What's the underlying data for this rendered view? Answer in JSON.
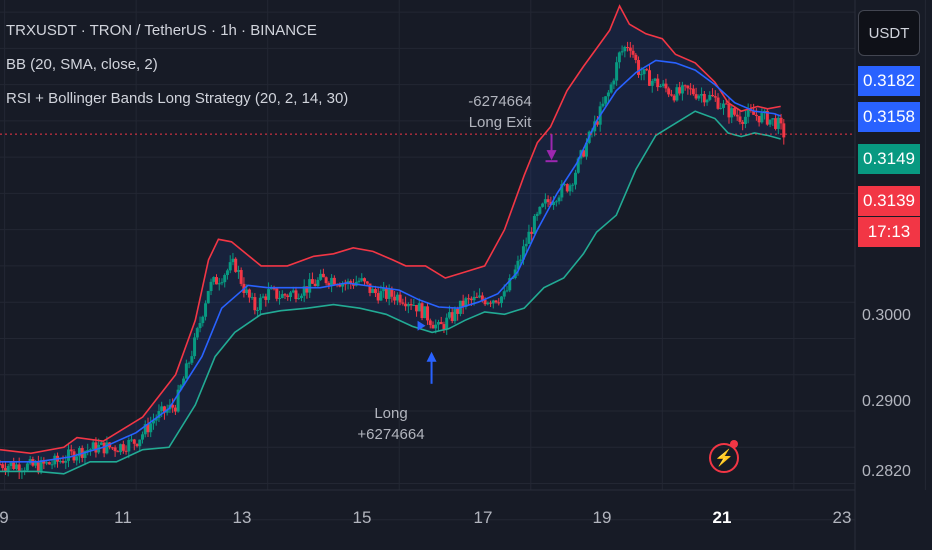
{
  "header": {
    "symbol_line": "TRXUSDT · TRON / TetherUS · 1h · BINANCE",
    "indicator_bb": "BB (20, SMA, close, 2)",
    "strategy": "RSI + Bollinger Bands Long Strategy (20, 2, 14, 30)"
  },
  "currency_button": "USDT",
  "price_labels": [
    {
      "text": "0.3182",
      "color": "#2962ff"
    },
    {
      "text": "0.3158",
      "color": "#2962ff"
    },
    {
      "text": "0.3149",
      "color": "#089981"
    },
    {
      "text": "0.3139",
      "color": "#f23645"
    }
  ],
  "countdown": "17:13",
  "price_axis": [
    "0.3000",
    "0.2900",
    "0.2820"
  ],
  "date_axis": [
    {
      "text": "9",
      "bold": false
    },
    {
      "text": "11",
      "bold": false
    },
    {
      "text": "13",
      "bold": false
    },
    {
      "text": "15",
      "bold": false
    },
    {
      "text": "17",
      "bold": false
    },
    {
      "text": "19",
      "bold": false
    },
    {
      "text": "21",
      "bold": true
    },
    {
      "text": "23",
      "bold": false
    }
  ],
  "annotations": {
    "long_label": "Long",
    "long_value": "+6274664",
    "exit_value": "-6274664",
    "exit_label": "Long Exit"
  },
  "colors": {
    "background": "#171b26",
    "up_candle": "#089981",
    "down_candle": "#f23645",
    "bb_upper": "#f23645",
    "bb_basis": "#2962ff",
    "bb_lower": "#22ab94",
    "bb_fill": "#2962ff",
    "long_marker": "#2962ff",
    "exit_marker": "#9c27b0",
    "last_price_line": "#f23645"
  },
  "chart_data": {
    "type": "candlestick",
    "symbol": "TRXUSDT",
    "interval": "1h",
    "x_range_days": [
      8.93,
      23.1
    ],
    "ylim": [
      0.2795,
      0.325
    ],
    "last_price": 0.3139,
    "series": [
      {
        "name": "upper",
        "points": [
          [
            8.93,
            0.2878
          ],
          [
            9.4,
            0.2875
          ],
          [
            9.9,
            0.288
          ],
          [
            10.1,
            0.2888
          ],
          [
            10.5,
            0.2885
          ],
          [
            11.1,
            0.2905
          ],
          [
            11.6,
            0.294
          ],
          [
            11.9,
            0.2985
          ],
          [
            12.1,
            0.3035
          ],
          [
            12.25,
            0.3052
          ],
          [
            12.45,
            0.305
          ],
          [
            12.9,
            0.303
          ],
          [
            13.3,
            0.303
          ],
          [
            13.7,
            0.3038
          ],
          [
            14.0,
            0.304
          ],
          [
            14.3,
            0.3045
          ],
          [
            14.6,
            0.3042
          ],
          [
            14.9,
            0.3035
          ],
          [
            15.1,
            0.303
          ],
          [
            15.4,
            0.303
          ],
          [
            15.7,
            0.302
          ],
          [
            16.0,
            0.3025
          ],
          [
            16.3,
            0.303
          ],
          [
            16.6,
            0.306
          ],
          [
            16.9,
            0.3105
          ],
          [
            17.1,
            0.3132
          ],
          [
            17.3,
            0.3145
          ],
          [
            17.55,
            0.3175
          ],
          [
            17.8,
            0.3195
          ],
          [
            18.0,
            0.321
          ],
          [
            18.2,
            0.3225
          ],
          [
            18.35,
            0.3245
          ],
          [
            18.5,
            0.323
          ],
          [
            18.75,
            0.3222
          ],
          [
            19.0,
            0.3218
          ],
          [
            19.2,
            0.3205
          ],
          [
            19.5,
            0.3198
          ],
          [
            19.8,
            0.3182
          ],
          [
            20.0,
            0.3165
          ],
          [
            20.2,
            0.3158
          ],
          [
            20.45,
            0.3162
          ],
          [
            20.6,
            0.316
          ],
          [
            20.8,
            0.3162
          ]
        ]
      },
      {
        "name": "basis",
        "points": [
          [
            8.93,
            0.2868
          ],
          [
            9.5,
            0.2868
          ],
          [
            10.0,
            0.2872
          ],
          [
            10.5,
            0.288
          ],
          [
            11.0,
            0.2892
          ],
          [
            11.5,
            0.2912
          ],
          [
            12.0,
            0.2955
          ],
          [
            12.3,
            0.2995
          ],
          [
            12.7,
            0.3014
          ],
          [
            13.0,
            0.3012
          ],
          [
            13.4,
            0.3012
          ],
          [
            13.8,
            0.3012
          ],
          [
            14.2,
            0.3016
          ],
          [
            14.6,
            0.3013
          ],
          [
            15.0,
            0.301
          ],
          [
            15.3,
            0.3002
          ],
          [
            15.6,
            0.2996
          ],
          [
            15.9,
            0.2995
          ],
          [
            16.2,
            0.3
          ],
          [
            16.5,
            0.3007
          ],
          [
            16.8,
            0.3025
          ],
          [
            17.1,
            0.306
          ],
          [
            17.4,
            0.309
          ],
          [
            17.7,
            0.3115
          ],
          [
            18.0,
            0.315
          ],
          [
            18.3,
            0.3175
          ],
          [
            18.6,
            0.319
          ],
          [
            18.9,
            0.32
          ],
          [
            19.2,
            0.3198
          ],
          [
            19.5,
            0.3192
          ],
          [
            19.8,
            0.318
          ],
          [
            20.1,
            0.3165
          ],
          [
            20.4,
            0.3158
          ],
          [
            20.7,
            0.3156
          ],
          [
            20.8,
            0.3154
          ]
        ]
      },
      {
        "name": "lower",
        "points": [
          [
            8.93,
            0.286
          ],
          [
            9.5,
            0.286
          ],
          [
            9.9,
            0.2858
          ],
          [
            10.3,
            0.2868
          ],
          [
            10.7,
            0.2868
          ],
          [
            11.1,
            0.2878
          ],
          [
            11.5,
            0.288
          ],
          [
            11.9,
            0.2915
          ],
          [
            12.2,
            0.2955
          ],
          [
            12.5,
            0.2975
          ],
          [
            12.9,
            0.299
          ],
          [
            13.2,
            0.2993
          ],
          [
            13.6,
            0.2995
          ],
          [
            14.0,
            0.2998
          ],
          [
            14.4,
            0.2995
          ],
          [
            14.8,
            0.299
          ],
          [
            15.2,
            0.298
          ],
          [
            15.5,
            0.2975
          ],
          [
            15.75,
            0.2978
          ],
          [
            16.0,
            0.2985
          ],
          [
            16.3,
            0.2992
          ],
          [
            16.6,
            0.299
          ],
          [
            16.9,
            0.2995
          ],
          [
            17.2,
            0.3012
          ],
          [
            17.5,
            0.302
          ],
          [
            17.8,
            0.304
          ],
          [
            18.0,
            0.3058
          ],
          [
            18.3,
            0.3072
          ],
          [
            18.6,
            0.311
          ],
          [
            18.9,
            0.3138
          ],
          [
            19.2,
            0.3148
          ],
          [
            19.5,
            0.3158
          ],
          [
            19.8,
            0.3152
          ],
          [
            20.0,
            0.314
          ],
          [
            20.2,
            0.3137
          ],
          [
            20.4,
            0.314
          ],
          [
            20.6,
            0.3138
          ],
          [
            20.8,
            0.3135
          ]
        ]
      },
      {
        "name": "close",
        "points": [
          [
            8.93,
            0.2866
          ],
          [
            9.2,
            0.2865
          ],
          [
            9.5,
            0.2864
          ],
          [
            9.8,
            0.2868
          ],
          [
            10.1,
            0.2876
          ],
          [
            10.4,
            0.288
          ],
          [
            10.7,
            0.288
          ],
          [
            11.0,
            0.2885
          ],
          [
            11.3,
            0.2905
          ],
          [
            11.6,
            0.2915
          ],
          [
            11.9,
            0.2968
          ],
          [
            12.1,
            0.3012
          ],
          [
            12.3,
            0.3022
          ],
          [
            12.5,
            0.3032
          ],
          [
            12.65,
            0.301
          ],
          [
            12.8,
            0.2995
          ],
          [
            13.0,
            0.3008
          ],
          [
            13.2,
            0.3005
          ],
          [
            13.4,
            0.3008
          ],
          [
            13.6,
            0.3012
          ],
          [
            13.8,
            0.3018
          ],
          [
            14.0,
            0.302
          ],
          [
            14.2,
            0.3015
          ],
          [
            14.4,
            0.3018
          ],
          [
            14.6,
            0.3008
          ],
          [
            14.8,
            0.3006
          ],
          [
            15.0,
            0.3005
          ],
          [
            15.2,
            0.3
          ],
          [
            15.4,
            0.299
          ],
          [
            15.6,
            0.2978
          ],
          [
            15.8,
            0.2988
          ],
          [
            16.0,
            0.3
          ],
          [
            16.2,
            0.3002
          ],
          [
            16.4,
            0.3003
          ],
          [
            16.6,
            0.3005
          ],
          [
            16.8,
            0.303
          ],
          [
            17.0,
            0.306
          ],
          [
            17.2,
            0.308
          ],
          [
            17.4,
            0.309
          ],
          [
            17.6,
            0.3098
          ],
          [
            17.8,
            0.3125
          ],
          [
            18.0,
            0.315
          ],
          [
            18.2,
            0.3175
          ],
          [
            18.35,
            0.3205
          ],
          [
            18.5,
            0.3215
          ],
          [
            18.65,
            0.319
          ],
          [
            18.8,
            0.3185
          ],
          [
            19.0,
            0.3178
          ],
          [
            19.2,
            0.3172
          ],
          [
            19.4,
            0.3175
          ],
          [
            19.6,
            0.3172
          ],
          [
            19.8,
            0.3168
          ],
          [
            20.0,
            0.3158
          ],
          [
            20.2,
            0.3153
          ],
          [
            20.4,
            0.3155
          ],
          [
            20.6,
            0.3152
          ],
          [
            20.75,
            0.3148
          ],
          [
            20.85,
            0.3139
          ]
        ]
      }
    ],
    "signals": [
      {
        "type": "Long",
        "x": 15.4,
        "price": 0.2978
      },
      {
        "type": "Long Exit",
        "x": 17.3,
        "price": 0.3115
      }
    ]
  }
}
